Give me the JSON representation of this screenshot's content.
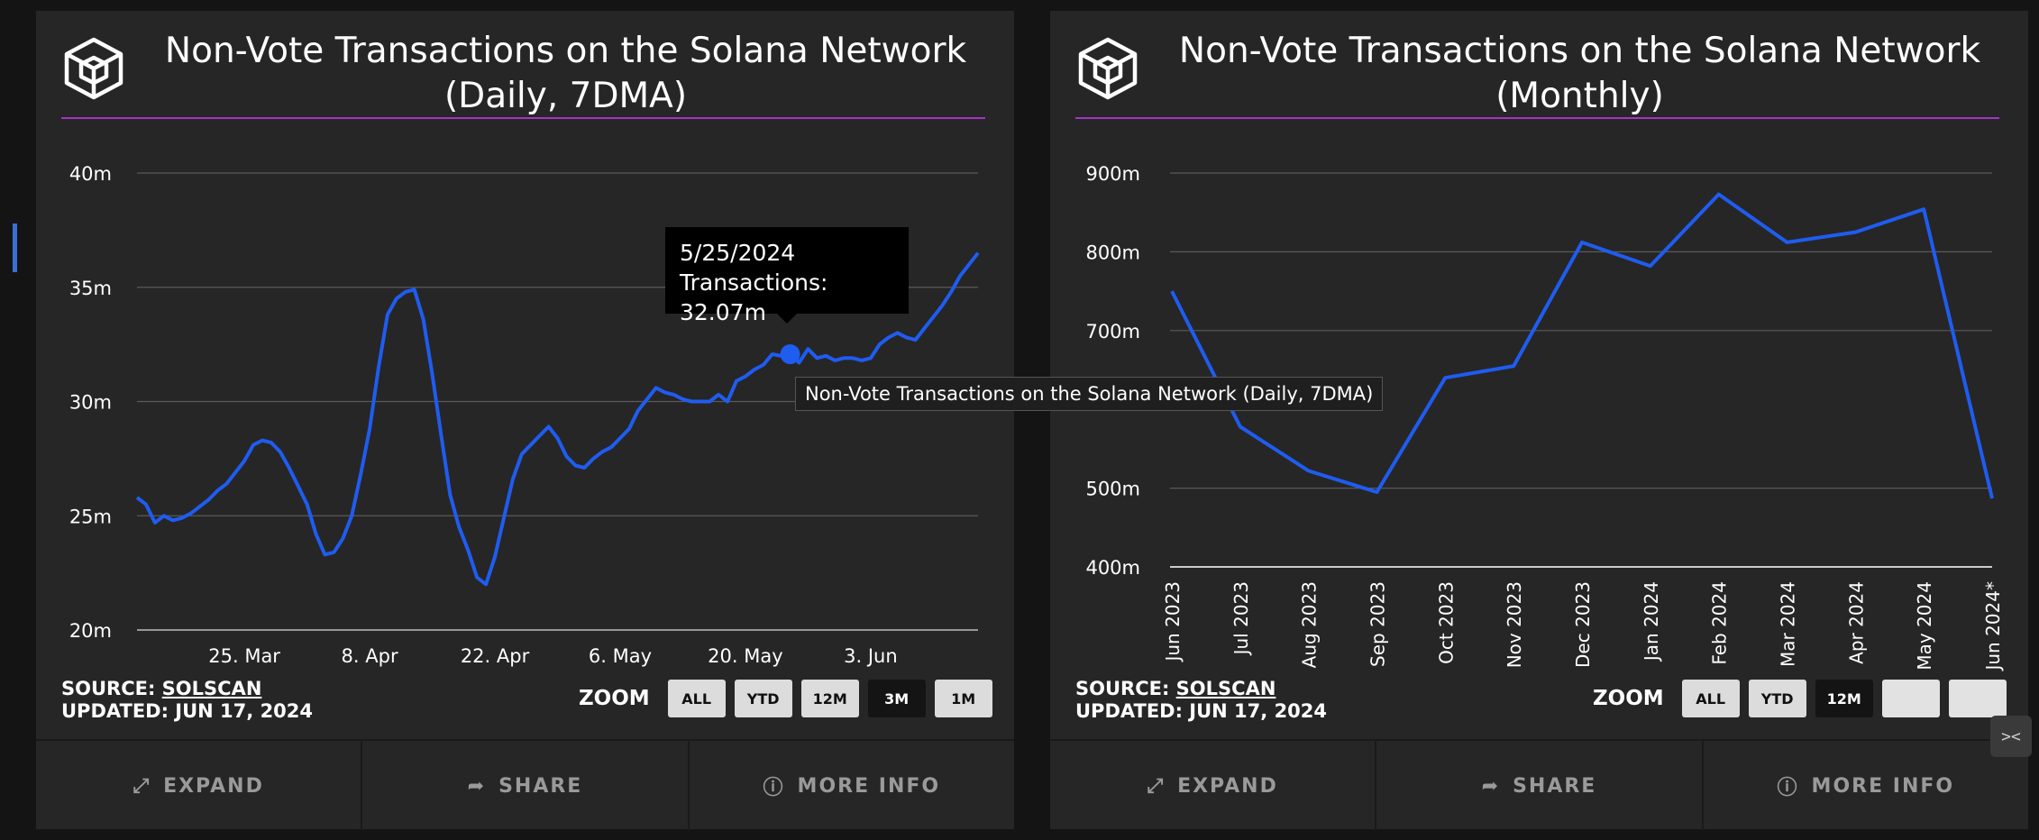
{
  "left_panel": {
    "title_line1": "Non-Vote Transactions on the Solana Network",
    "title_line2": "(Daily, 7DMA)",
    "source_label": "SOURCE:",
    "source_name": "SOLSCAN",
    "updated": "UPDATED: JUN 17, 2024",
    "zoom_label": "ZOOM",
    "zoom_buttons": [
      "ALL",
      "YTD",
      "12M",
      "3M",
      "1M"
    ],
    "zoom_active": "3M",
    "footer": {
      "expand": "EXPAND",
      "share": "SHARE",
      "more_info": "MORE INFO"
    },
    "tooltip": {
      "date": "5/25/2024",
      "value": "Transactions: 32.07m"
    },
    "series_tooltip": "Non-Vote Transactions on the Solana Network (Daily, 7DMA)"
  },
  "right_panel": {
    "title_line1": "Non-Vote Transactions on the Solana Network",
    "title_line2": "(Monthly)",
    "source_label": "SOURCE:",
    "source_name": "SOLSCAN",
    "updated": "UPDATED: JUN 17, 2024",
    "zoom_label": "ZOOM",
    "zoom_buttons": [
      "ALL",
      "YTD",
      "12M",
      "",
      ""
    ],
    "zoom_active": "12M",
    "footer": {
      "expand": "EXPAND",
      "share": "SHARE",
      "more_info": "MORE INFO"
    }
  },
  "colors": {
    "line": "#1f5cf0",
    "title_rule": "#a533c8",
    "panel": "#262626",
    "background": "#141414"
  },
  "icons": {
    "expand": "expand-arrows-icon",
    "share": "share-arrow-icon",
    "info": "info-circle-icon",
    "logo": "block-cube-logo"
  },
  "chart_data": [
    {
      "type": "line",
      "title": "Non-Vote Transactions on the Solana Network (Daily, 7DMA)",
      "ylim": [
        20,
        40
      ],
      "y_unit": "m",
      "yticks": [
        "20m",
        "25m",
        "30m",
        "35m",
        "40m"
      ],
      "xlim": [
        "2024-03-13",
        "2024-06-15"
      ],
      "xticks": [
        {
          "date": "2024-03-25",
          "label": "25. Mar"
        },
        {
          "date": "2024-04-08",
          "label": "8. Apr"
        },
        {
          "date": "2024-04-22",
          "label": "22. Apr"
        },
        {
          "date": "2024-05-06",
          "label": "6. May"
        },
        {
          "date": "2024-05-20",
          "label": "20. May"
        },
        {
          "date": "2024-06-03",
          "label": "3. Jun"
        }
      ],
      "series": [
        {
          "highlight": {
            "date": "2024-05-25",
            "value": 32.07
          },
          "points": [
            [
              "2024-03-13",
              25.8
            ],
            [
              "2024-03-14",
              25.5
            ],
            [
              "2024-03-15",
              24.7
            ],
            [
              "2024-03-16",
              25.0
            ],
            [
              "2024-03-17",
              24.8
            ],
            [
              "2024-03-18",
              24.9
            ],
            [
              "2024-03-19",
              25.1
            ],
            [
              "2024-03-20",
              25.4
            ],
            [
              "2024-03-21",
              25.7
            ],
            [
              "2024-03-22",
              26.1
            ],
            [
              "2024-03-23",
              26.4
            ],
            [
              "2024-03-24",
              26.9
            ],
            [
              "2024-03-25",
              27.4
            ],
            [
              "2024-03-26",
              28.1
            ],
            [
              "2024-03-27",
              28.3
            ],
            [
              "2024-03-28",
              28.2
            ],
            [
              "2024-03-29",
              27.8
            ],
            [
              "2024-03-30",
              27.1
            ],
            [
              "2024-03-31",
              26.3
            ],
            [
              "2024-04-01",
              25.5
            ],
            [
              "2024-04-02",
              24.2
            ],
            [
              "2024-04-03",
              23.3
            ],
            [
              "2024-04-04",
              23.4
            ],
            [
              "2024-04-05",
              24.0
            ],
            [
              "2024-04-06",
              25.0
            ],
            [
              "2024-04-07",
              26.8
            ],
            [
              "2024-04-08",
              28.8
            ],
            [
              "2024-04-09",
              31.5
            ],
            [
              "2024-04-10",
              33.8
            ],
            [
              "2024-04-11",
              34.5
            ],
            [
              "2024-04-12",
              34.8
            ],
            [
              "2024-04-13",
              34.9
            ],
            [
              "2024-04-14",
              33.6
            ],
            [
              "2024-04-15",
              31.2
            ],
            [
              "2024-04-16",
              28.5
            ],
            [
              "2024-04-17",
              25.9
            ],
            [
              "2024-04-18",
              24.5
            ],
            [
              "2024-04-19",
              23.5
            ],
            [
              "2024-04-20",
              22.3
            ],
            [
              "2024-04-21",
              22.0
            ],
            [
              "2024-04-22",
              23.2
            ],
            [
              "2024-04-23",
              24.9
            ],
            [
              "2024-04-24",
              26.6
            ],
            [
              "2024-04-25",
              27.7
            ],
            [
              "2024-04-26",
              28.1
            ],
            [
              "2024-04-27",
              28.5
            ],
            [
              "2024-04-28",
              28.9
            ],
            [
              "2024-04-29",
              28.4
            ],
            [
              "2024-04-30",
              27.6
            ],
            [
              "2024-05-01",
              27.2
            ],
            [
              "2024-05-02",
              27.1
            ],
            [
              "2024-05-03",
              27.5
            ],
            [
              "2024-05-04",
              27.8
            ],
            [
              "2024-05-05",
              28.0
            ],
            [
              "2024-05-06",
              28.4
            ],
            [
              "2024-05-07",
              28.8
            ],
            [
              "2024-05-08",
              29.6
            ],
            [
              "2024-05-09",
              30.1
            ],
            [
              "2024-05-10",
              30.6
            ],
            [
              "2024-05-11",
              30.4
            ],
            [
              "2024-05-12",
              30.3
            ],
            [
              "2024-05-13",
              30.1
            ],
            [
              "2024-05-14",
              30.0
            ],
            [
              "2024-05-15",
              30.0
            ],
            [
              "2024-05-16",
              30.0
            ],
            [
              "2024-05-17",
              30.3
            ],
            [
              "2024-05-18",
              30.0
            ],
            [
              "2024-05-19",
              30.9
            ],
            [
              "2024-05-20",
              31.1
            ],
            [
              "2024-05-21",
              31.4
            ],
            [
              "2024-05-22",
              31.6
            ],
            [
              "2024-05-23",
              32.07
            ],
            [
              "2024-05-24",
              32.0
            ],
            [
              "2024-05-25",
              32.07
            ],
            [
              "2024-05-26",
              31.7
            ],
            [
              "2024-05-27",
              32.3
            ],
            [
              "2024-05-28",
              31.9
            ],
            [
              "2024-05-29",
              32.0
            ],
            [
              "2024-05-30",
              31.8
            ],
            [
              "2024-05-31",
              31.9
            ],
            [
              "2024-06-01",
              31.9
            ],
            [
              "2024-06-02",
              31.8
            ],
            [
              "2024-06-03",
              31.9
            ],
            [
              "2024-06-04",
              32.5
            ],
            [
              "2024-06-05",
              32.8
            ],
            [
              "2024-06-06",
              33.0
            ],
            [
              "2024-06-07",
              32.8
            ],
            [
              "2024-06-08",
              32.7
            ],
            [
              "2024-06-09",
              33.2
            ],
            [
              "2024-06-10",
              33.7
            ],
            [
              "2024-06-11",
              34.2
            ],
            [
              "2024-06-12",
              34.8
            ],
            [
              "2024-06-13",
              35.5
            ],
            [
              "2024-06-14",
              36.0
            ],
            [
              "2024-06-15",
              36.5
            ]
          ]
        }
      ]
    },
    {
      "type": "line",
      "title": "Non-Vote Transactions on the Solana Network (Monthly)",
      "ylim": [
        400,
        900
      ],
      "y_unit": "m",
      "yticks": [
        "400m",
        "500m",
        "700m",
        "800m",
        "900m"
      ],
      "categories": [
        "Jun 2023",
        "Jul 2023",
        "Aug 2023",
        "Sep 2023",
        "Oct 2023",
        "Nov 2023",
        "Dec 2023",
        "Jan 2024",
        "Feb 2024",
        "Mar 2024",
        "Apr 2024",
        "May 2024",
        "Jun 2024*"
      ],
      "series": [
        {
          "values": [
            750,
            578,
            522,
            495,
            640,
            655,
            812,
            782,
            873,
            812,
            825,
            854,
            487
          ]
        }
      ]
    }
  ]
}
